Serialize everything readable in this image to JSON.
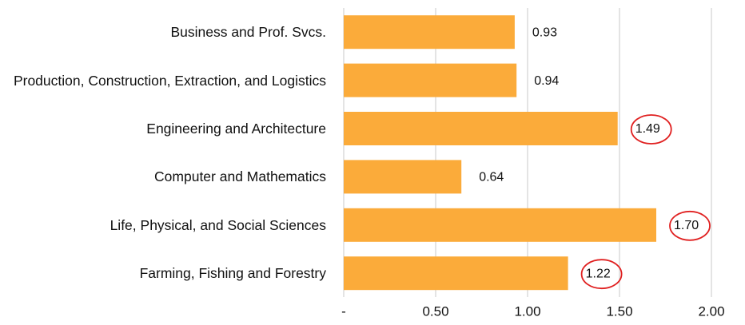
{
  "chart_data": {
    "type": "bar",
    "orientation": "horizontal",
    "categories": [
      "Business and Prof. Svcs.",
      "Production, Construction, Extraction, and Logistics",
      "Engineering and Architecture",
      "Computer and Mathematics",
      "Life, Physical, and Social Sciences",
      "Farming, Fishing and Forestry"
    ],
    "values": [
      0.93,
      0.94,
      1.49,
      0.64,
      1.7,
      1.22
    ],
    "value_labels": [
      "0.93",
      "0.94",
      "1.49",
      "0.64",
      "1.70",
      "1.22"
    ],
    "circled_labels": [
      false,
      false,
      true,
      false,
      true,
      true
    ],
    "color": "#fbab3a",
    "circle_color": "#e02020",
    "xlim": [
      0,
      2
    ],
    "xticks": [
      {
        "value": 0,
        "label": "-"
      },
      {
        "value": 0.5,
        "label": "0.50"
      },
      {
        "value": 1,
        "label": "1.00"
      },
      {
        "value": 1.5,
        "label": "1.50"
      },
      {
        "value": 2,
        "label": "2.00"
      }
    ],
    "grid": true
  }
}
